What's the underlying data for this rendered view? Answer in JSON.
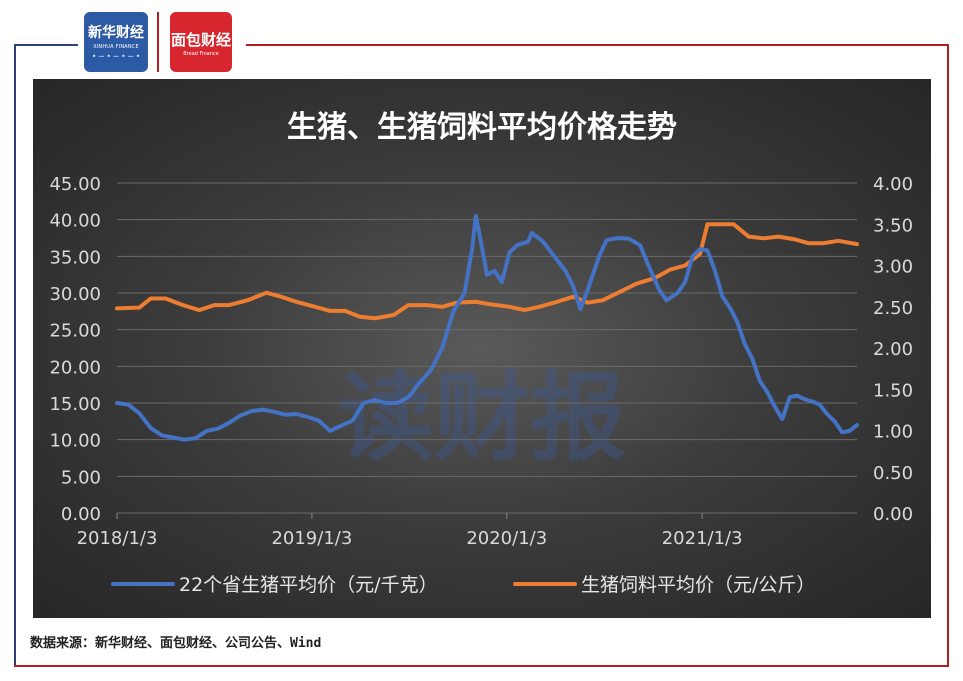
{
  "logos": {
    "xinhua_cn": "新华财经",
    "xinhua_en": "XINHUA FINANCE",
    "mianbao_cn": "面包财经",
    "mianbao_en": "Bread Finance"
  },
  "watermark": "读财报",
  "source_note": "数据来源：新华财经、面包财经、公司公告、Wind",
  "colors": {
    "series_hog": "#4472c4",
    "series_feed": "#ed7d31",
    "panel_bg": "#3c3c3c",
    "frame_left": "#2b3f73",
    "frame_right": "#b01e23"
  },
  "chart_data": {
    "type": "line",
    "title": "生猪、生猪饲料平均价格走势",
    "x_tick_labels": [
      "2018/1/3",
      "2019/1/3",
      "2020/1/3",
      "2021/1/3"
    ],
    "x_tick_dates": [
      "2018-01-03",
      "2019-01-03",
      "2020-01-03",
      "2021-01-03"
    ],
    "x_range": [
      "2018-01-03",
      "2021-10-20"
    ],
    "y_left": {
      "range": [
        0,
        45
      ],
      "ticks": [
        "0.00",
        "5.00",
        "10.00",
        "15.00",
        "20.00",
        "25.00",
        "30.00",
        "35.00",
        "40.00",
        "45.00"
      ]
    },
    "y_right": {
      "range": [
        0,
        4
      ],
      "ticks": [
        "0.00",
        "0.50",
        "1.00",
        "1.50",
        "2.00",
        "2.50",
        "3.00",
        "3.50",
        "4.00"
      ]
    },
    "legend_position": "bottom",
    "grid": "horizontal",
    "series": [
      {
        "name": "22个省生猪平均价（元/千克）",
        "axis": "left",
        "points": [
          [
            "2018-01-03",
            15.0
          ],
          [
            "2018-01-24",
            14.8
          ],
          [
            "2018-02-14",
            13.6
          ],
          [
            "2018-03-07",
            11.6
          ],
          [
            "2018-03-28",
            10.6
          ],
          [
            "2018-04-18",
            10.3
          ],
          [
            "2018-05-09",
            10.0
          ],
          [
            "2018-05-30",
            10.2
          ],
          [
            "2018-06-20",
            11.2
          ],
          [
            "2018-07-11",
            11.5
          ],
          [
            "2018-08-01",
            12.3
          ],
          [
            "2018-08-22",
            13.3
          ],
          [
            "2018-09-12",
            13.9
          ],
          [
            "2018-10-03",
            14.1
          ],
          [
            "2018-10-24",
            13.8
          ],
          [
            "2018-11-14",
            13.4
          ],
          [
            "2018-12-05",
            13.5
          ],
          [
            "2018-12-26",
            13.1
          ],
          [
            "2019-01-16",
            12.6
          ],
          [
            "2019-02-06",
            11.2
          ],
          [
            "2019-02-27",
            11.9
          ],
          [
            "2019-03-20",
            12.6
          ],
          [
            "2019-04-10",
            15.0
          ],
          [
            "2019-05-01",
            15.4
          ],
          [
            "2019-05-22",
            15.0
          ],
          [
            "2019-06-12",
            15.0
          ],
          [
            "2019-07-03",
            15.8
          ],
          [
            "2019-07-24",
            17.8
          ],
          [
            "2019-08-14",
            19.5
          ],
          [
            "2019-09-04",
            22.5
          ],
          [
            "2019-09-25",
            27.5
          ],
          [
            "2019-10-16",
            30.0
          ],
          [
            "2019-10-30",
            36.0
          ],
          [
            "2019-11-06",
            40.5
          ],
          [
            "2019-11-13",
            38.0
          ],
          [
            "2019-11-27",
            32.5
          ],
          [
            "2019-12-11",
            33.0
          ],
          [
            "2019-12-25",
            31.5
          ],
          [
            "2020-01-08",
            35.5
          ],
          [
            "2020-01-22",
            36.5
          ],
          [
            "2020-02-12",
            37.0
          ],
          [
            "2020-02-19",
            38.2
          ],
          [
            "2020-03-11",
            37.0
          ],
          [
            "2020-04-01",
            35.0
          ],
          [
            "2020-04-22",
            33.0
          ],
          [
            "2020-05-06",
            31.0
          ],
          [
            "2020-05-20",
            27.8
          ],
          [
            "2020-06-03",
            30.5
          ],
          [
            "2020-06-24",
            35.0
          ],
          [
            "2020-07-08",
            37.2
          ],
          [
            "2020-07-29",
            37.5
          ],
          [
            "2020-08-19",
            37.4
          ],
          [
            "2020-09-09",
            36.5
          ],
          [
            "2020-09-23",
            34.0
          ],
          [
            "2020-10-14",
            30.5
          ],
          [
            "2020-10-28",
            29.0
          ],
          [
            "2020-11-18",
            30.0
          ],
          [
            "2020-12-02",
            31.5
          ],
          [
            "2020-12-16",
            35.0
          ],
          [
            "2020-12-30",
            36.0
          ],
          [
            "2021-01-13",
            35.8
          ],
          [
            "2021-01-27",
            33.0
          ],
          [
            "2021-02-10",
            29.5
          ],
          [
            "2021-02-24",
            28.0
          ],
          [
            "2021-03-10",
            26.0
          ],
          [
            "2021-03-24",
            23.0
          ],
          [
            "2021-04-07",
            21.0
          ],
          [
            "2021-04-21",
            18.0
          ],
          [
            "2021-05-05",
            16.5
          ],
          [
            "2021-05-19",
            14.5
          ],
          [
            "2021-06-02",
            12.8
          ],
          [
            "2021-06-16",
            15.8
          ],
          [
            "2021-06-30",
            16.0
          ],
          [
            "2021-07-14",
            15.5
          ],
          [
            "2021-07-28",
            15.2
          ],
          [
            "2021-08-11",
            14.8
          ],
          [
            "2021-08-25",
            13.5
          ],
          [
            "2021-09-08",
            12.5
          ],
          [
            "2021-09-22",
            11.0
          ],
          [
            "2021-10-06",
            11.2
          ],
          [
            "2021-10-20",
            12.0
          ]
        ]
      },
      {
        "name": "生猪饲料平均价（元/公斤）",
        "axis": "right",
        "points": [
          [
            "2018-01-03",
            2.48
          ],
          [
            "2018-02-14",
            2.49
          ],
          [
            "2018-03-07",
            2.6
          ],
          [
            "2018-04-04",
            2.6
          ],
          [
            "2018-05-02",
            2.53
          ],
          [
            "2018-06-06",
            2.46
          ],
          [
            "2018-07-04",
            2.52
          ],
          [
            "2018-08-01",
            2.52
          ],
          [
            "2018-09-05",
            2.58
          ],
          [
            "2018-10-10",
            2.67
          ],
          [
            "2018-11-07",
            2.62
          ],
          [
            "2018-12-05",
            2.56
          ],
          [
            "2019-01-09",
            2.5
          ],
          [
            "2019-02-06",
            2.45
          ],
          [
            "2019-03-06",
            2.45
          ],
          [
            "2019-04-03",
            2.38
          ],
          [
            "2019-05-01",
            2.36
          ],
          [
            "2019-06-05",
            2.4
          ],
          [
            "2019-07-03",
            2.52
          ],
          [
            "2019-08-07",
            2.52
          ],
          [
            "2019-09-04",
            2.5
          ],
          [
            "2019-10-02",
            2.55
          ],
          [
            "2019-11-06",
            2.56
          ],
          [
            "2019-12-04",
            2.53
          ],
          [
            "2020-01-08",
            2.5
          ],
          [
            "2020-02-05",
            2.46
          ],
          [
            "2020-03-04",
            2.5
          ],
          [
            "2020-04-01",
            2.55
          ],
          [
            "2020-05-06",
            2.62
          ],
          [
            "2020-06-03",
            2.55
          ],
          [
            "2020-07-01",
            2.58
          ],
          [
            "2020-08-05",
            2.69
          ],
          [
            "2020-09-02",
            2.78
          ],
          [
            "2020-10-07",
            2.85
          ],
          [
            "2020-11-04",
            2.95
          ],
          [
            "2020-12-02",
            3.0
          ],
          [
            "2020-12-30",
            3.14
          ],
          [
            "2021-01-13",
            3.5
          ],
          [
            "2021-02-10",
            3.5
          ],
          [
            "2021-03-03",
            3.5
          ],
          [
            "2021-03-31",
            3.35
          ],
          [
            "2021-04-28",
            3.33
          ],
          [
            "2021-05-26",
            3.35
          ],
          [
            "2021-06-23",
            3.32
          ],
          [
            "2021-07-21",
            3.27
          ],
          [
            "2021-08-18",
            3.27
          ],
          [
            "2021-09-15",
            3.3
          ],
          [
            "2021-10-20",
            3.26
          ]
        ]
      }
    ]
  }
}
